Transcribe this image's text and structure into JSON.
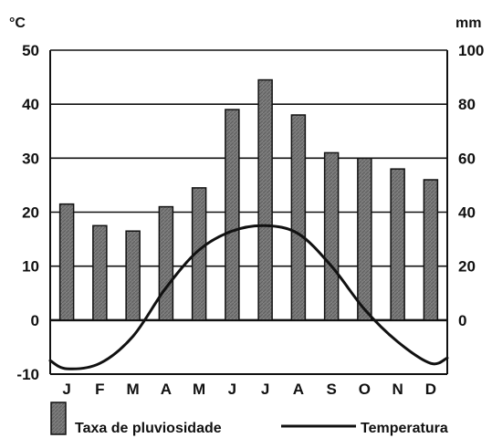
{
  "chart_data": {
    "type": "bar",
    "categories": [
      "J",
      "F",
      "M",
      "A",
      "M",
      "J",
      "J",
      "A",
      "S",
      "O",
      "N",
      "D"
    ],
    "left_axis": {
      "unit": "°C",
      "ticks": [
        "50",
        "40",
        "30",
        "20",
        "10",
        "0",
        "-10"
      ],
      "ylim": [
        -10,
        50
      ]
    },
    "right_axis": {
      "unit": "mm",
      "ticks": [
        "100",
        "80",
        "60",
        "40",
        "20",
        "0"
      ],
      "ylim": [
        0,
        100
      ]
    },
    "series": [
      {
        "name": "Taxa de pluviosidade",
        "type": "bar",
        "axis": "right",
        "values": [
          43,
          35,
          33,
          42,
          49,
          78,
          89,
          76,
          62,
          60,
          56,
          52
        ]
      },
      {
        "name": "Temperatura",
        "type": "line",
        "axis": "left",
        "values": [
          -9,
          -8,
          -3,
          6,
          13,
          16.5,
          17.5,
          16,
          10,
          2,
          -4,
          -8
        ]
      }
    ],
    "legend": [
      {
        "key": "bars",
        "label": "Taxa de pluviosidade"
      },
      {
        "key": "line",
        "label": "Temperatura"
      }
    ],
    "colors": {
      "bar_fill": "#7b7b7b",
      "bar_stroke": "#111111",
      "line": "#111111"
    }
  }
}
